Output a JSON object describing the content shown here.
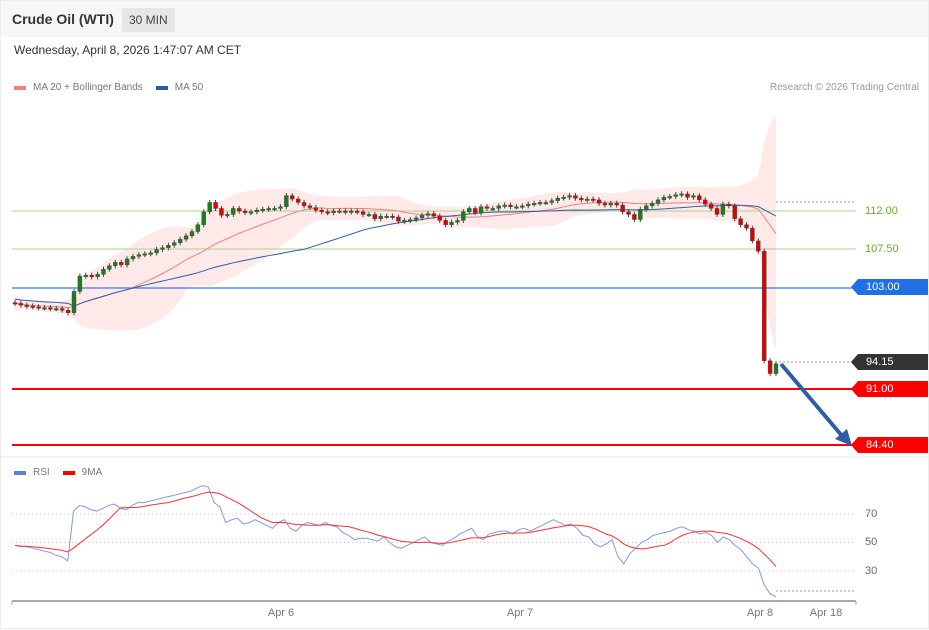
{
  "header": {
    "title": "Crude Oil (WTI)",
    "interval": "30 MIN",
    "datetime": "Wednesday, April 8, 2026 1:47:07 AM CET"
  },
  "legend": {
    "items": [
      {
        "label": "MA 20 + Bollinger Bands",
        "color": "#f08080"
      },
      {
        "label": "MA 50",
        "color": "#2f5ea8"
      }
    ],
    "copyright": "Research © 2026 Trading Central"
  },
  "levels": {
    "resistance_2": {
      "value": "112.00",
      "color": "#6aab2e"
    },
    "resistance_1": {
      "value": "107.50",
      "color": "#6aab2e"
    },
    "pivot": {
      "value": "103.00",
      "color": "#1f6fe5"
    },
    "last": {
      "value": "94.15",
      "color": "#333333"
    },
    "support_1": {
      "value": "91.00",
      "color": "#ff0000"
    },
    "support_2": {
      "value": "84.40",
      "color": "#ff0000"
    }
  },
  "rsi_panel": {
    "legend": [
      {
        "label": "RSI",
        "color": "#5b7fde"
      },
      {
        "label": "9MA",
        "color": "#ff0000"
      }
    ],
    "levels": [
      "70",
      "50",
      "30"
    ]
  },
  "x_axis": {
    "labels": [
      "Apr 6",
      "Apr 7",
      "Apr 8",
      "Apr 18"
    ]
  },
  "chart_data": [
    {
      "type": "candlestick",
      "title": "Crude Oil (WTI) 30 MIN",
      "indicators": [
        "MA 20 + Bollinger Bands",
        "MA 50"
      ],
      "price_levels": [
        112.0,
        107.5,
        103.0,
        91.0,
        84.4
      ],
      "last_price": 94.15,
      "x_ticks": [
        "Apr 6",
        "Apr 7",
        "Apr 8",
        "Apr 18"
      ],
      "trend_projection": {
        "from": 94.15,
        "to": 84.4,
        "direction": "down"
      },
      "approx_close_series": [
        101.2,
        101.0,
        100.9,
        100.8,
        100.7,
        100.7,
        100.6,
        100.6,
        100.4,
        100.1,
        102.6,
        104.4,
        104.5,
        104.3,
        104.6,
        105.2,
        105.6,
        106.0,
        105.7,
        106.4,
        106.7,
        106.9,
        107.0,
        107.1,
        107.5,
        107.7,
        108.0,
        108.3,
        108.7,
        109.1,
        109.6,
        110.4,
        111.9,
        113.0,
        112.3,
        111.5,
        111.6,
        112.3,
        112.0,
        111.8,
        111.9,
        112.1,
        112.2,
        112.3,
        112.3,
        112.5,
        113.8,
        113.4,
        113.0,
        112.6,
        112.4,
        112.1,
        111.9,
        111.8,
        112.0,
        112.0,
        111.9,
        112.0,
        111.9,
        111.6,
        111.6,
        111.1,
        111.4,
        111.4,
        111.3,
        110.8,
        110.9,
        111.0,
        111.2,
        111.5,
        111.7,
        111.4,
        110.9,
        110.4,
        110.7,
        110.9,
        111.9,
        112.3,
        111.8,
        112.5,
        112.3,
        112.3,
        112.6,
        112.7,
        112.5,
        112.5,
        112.6,
        112.8,
        112.9,
        113.0,
        113.0,
        113.2,
        113.5,
        113.6,
        113.8,
        113.5,
        113.3,
        113.4,
        113.3,
        112.9,
        112.7,
        112.9,
        112.7,
        111.9,
        111.6,
        111.0,
        112.2,
        112.6,
        112.9,
        113.3,
        113.6,
        113.7,
        113.9,
        114.0,
        113.6,
        113.8,
        113.3,
        112.8,
        112.3,
        111.6,
        112.8,
        112.6,
        111.1,
        110.4,
        110.0,
        108.5,
        107.3,
        94.5,
        93.0,
        94.15
      ]
    },
    {
      "type": "line",
      "title": "RSI",
      "series": [
        {
          "name": "RSI",
          "color": "#5b7fde"
        },
        {
          "name": "9MA",
          "color": "#ff0000"
        }
      ],
      "y_ticks": [
        70,
        50,
        30
      ],
      "last_rsi_approx": 12,
      "last_9ma_approx": 29
    }
  ]
}
